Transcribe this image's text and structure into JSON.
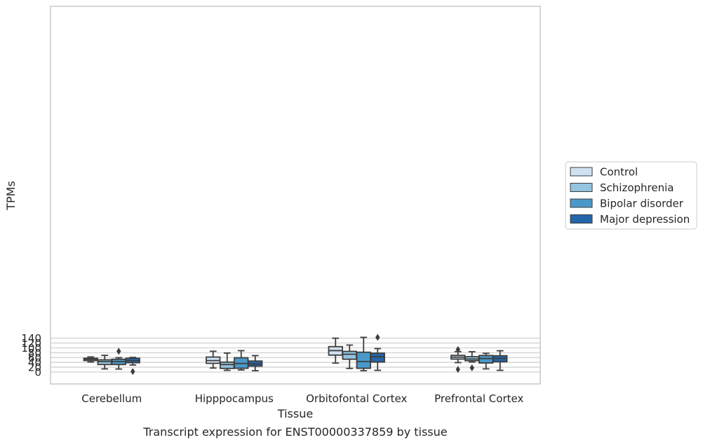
{
  "chart_data": {
    "type": "box",
    "caption": "Transcript expression for ENST00000337859 by tissue",
    "xlabel": "Tissue",
    "ylabel": "TPMs",
    "ylim": [
      -5,
      151
    ],
    "yticks": [
      0,
      20,
      40,
      60,
      80,
      100,
      120,
      140
    ],
    "grid": "horizontal",
    "legend_position": "right",
    "categories": [
      "Cerebellum",
      "Hipppocampus",
      "Orbitofontal Cortex",
      "Prefrontal Cortex"
    ],
    "series": [
      {
        "name": "Control",
        "color": "#d0e1f2",
        "boxes": [
          {
            "whislo": 41.5,
            "q1": 47.5,
            "med": 52.5,
            "q3": 57,
            "whishi": 62.5,
            "fliers": []
          },
          {
            "whislo": 16.5,
            "q1": 36,
            "med": 47.5,
            "q3": 62,
            "whishi": 86,
            "fliers": []
          },
          {
            "whislo": 37,
            "q1": 70,
            "med": 88.5,
            "q3": 105,
            "whishi": 140,
            "fliers": []
          },
          {
            "whislo": 39,
            "q1": 53.5,
            "med": 61.5,
            "q3": 69,
            "whishi": 84.5,
            "fliers": [
              93,
              11
            ]
          }
        ]
      },
      {
        "name": "Schizophrenia",
        "color": "#94c4df",
        "boxes": [
          {
            "whislo": 13,
            "q1": 31,
            "med": 43,
            "q3": 50.5,
            "whishi": 69,
            "fliers": []
          },
          {
            "whislo": 7,
            "q1": 15,
            "med": 31,
            "q3": 41,
            "whishi": 78.5,
            "fliers": []
          },
          {
            "whislo": 15,
            "q1": 53,
            "med": 73.5,
            "q3": 85.5,
            "whishi": 111.5,
            "fliers": []
          },
          {
            "whislo": 41.5,
            "q1": 47,
            "med": 54,
            "q3": 63.5,
            "whishi": 84,
            "fliers": [
              17.5
            ]
          }
        ]
      },
      {
        "name": "Bipolar disorder",
        "color": "#4a98c9",
        "boxes": [
          {
            "whislo": 12.5,
            "q1": 31,
            "med": 43,
            "q3": 53,
            "whishi": 59.5,
            "fliers": [
              86
            ]
          },
          {
            "whislo": 8.5,
            "q1": 15.5,
            "med": 35.5,
            "q3": 59,
            "whishi": 88.5,
            "fliers": []
          },
          {
            "whislo": 5.5,
            "q1": 15.5,
            "med": 43.5,
            "q3": 82,
            "whishi": 143.5,
            "fliers": []
          },
          {
            "whislo": 13,
            "q1": 37.5,
            "med": 56,
            "q3": 68.5,
            "whishi": 77.5,
            "fliers": []
          }
        ]
      },
      {
        "name": "Major depression",
        "color": "#2565a9",
        "boxes": [
          {
            "whislo": 29,
            "q1": 38.5,
            "med": 47,
            "q3": 57,
            "whishi": 60.5,
            "fliers": [
              2
            ]
          },
          {
            "whislo": 5.5,
            "q1": 24.5,
            "med": 33.5,
            "q3": 45.5,
            "whishi": 68,
            "fliers": []
          },
          {
            "whislo": 7,
            "q1": 41.5,
            "med": 63,
            "q3": 78,
            "whishi": 97,
            "fliers": [
              143.5
            ]
          },
          {
            "whislo": 7,
            "q1": 42.5,
            "med": 56.5,
            "q3": 67.5,
            "whishi": 88,
            "fliers": []
          }
        ]
      }
    ]
  }
}
